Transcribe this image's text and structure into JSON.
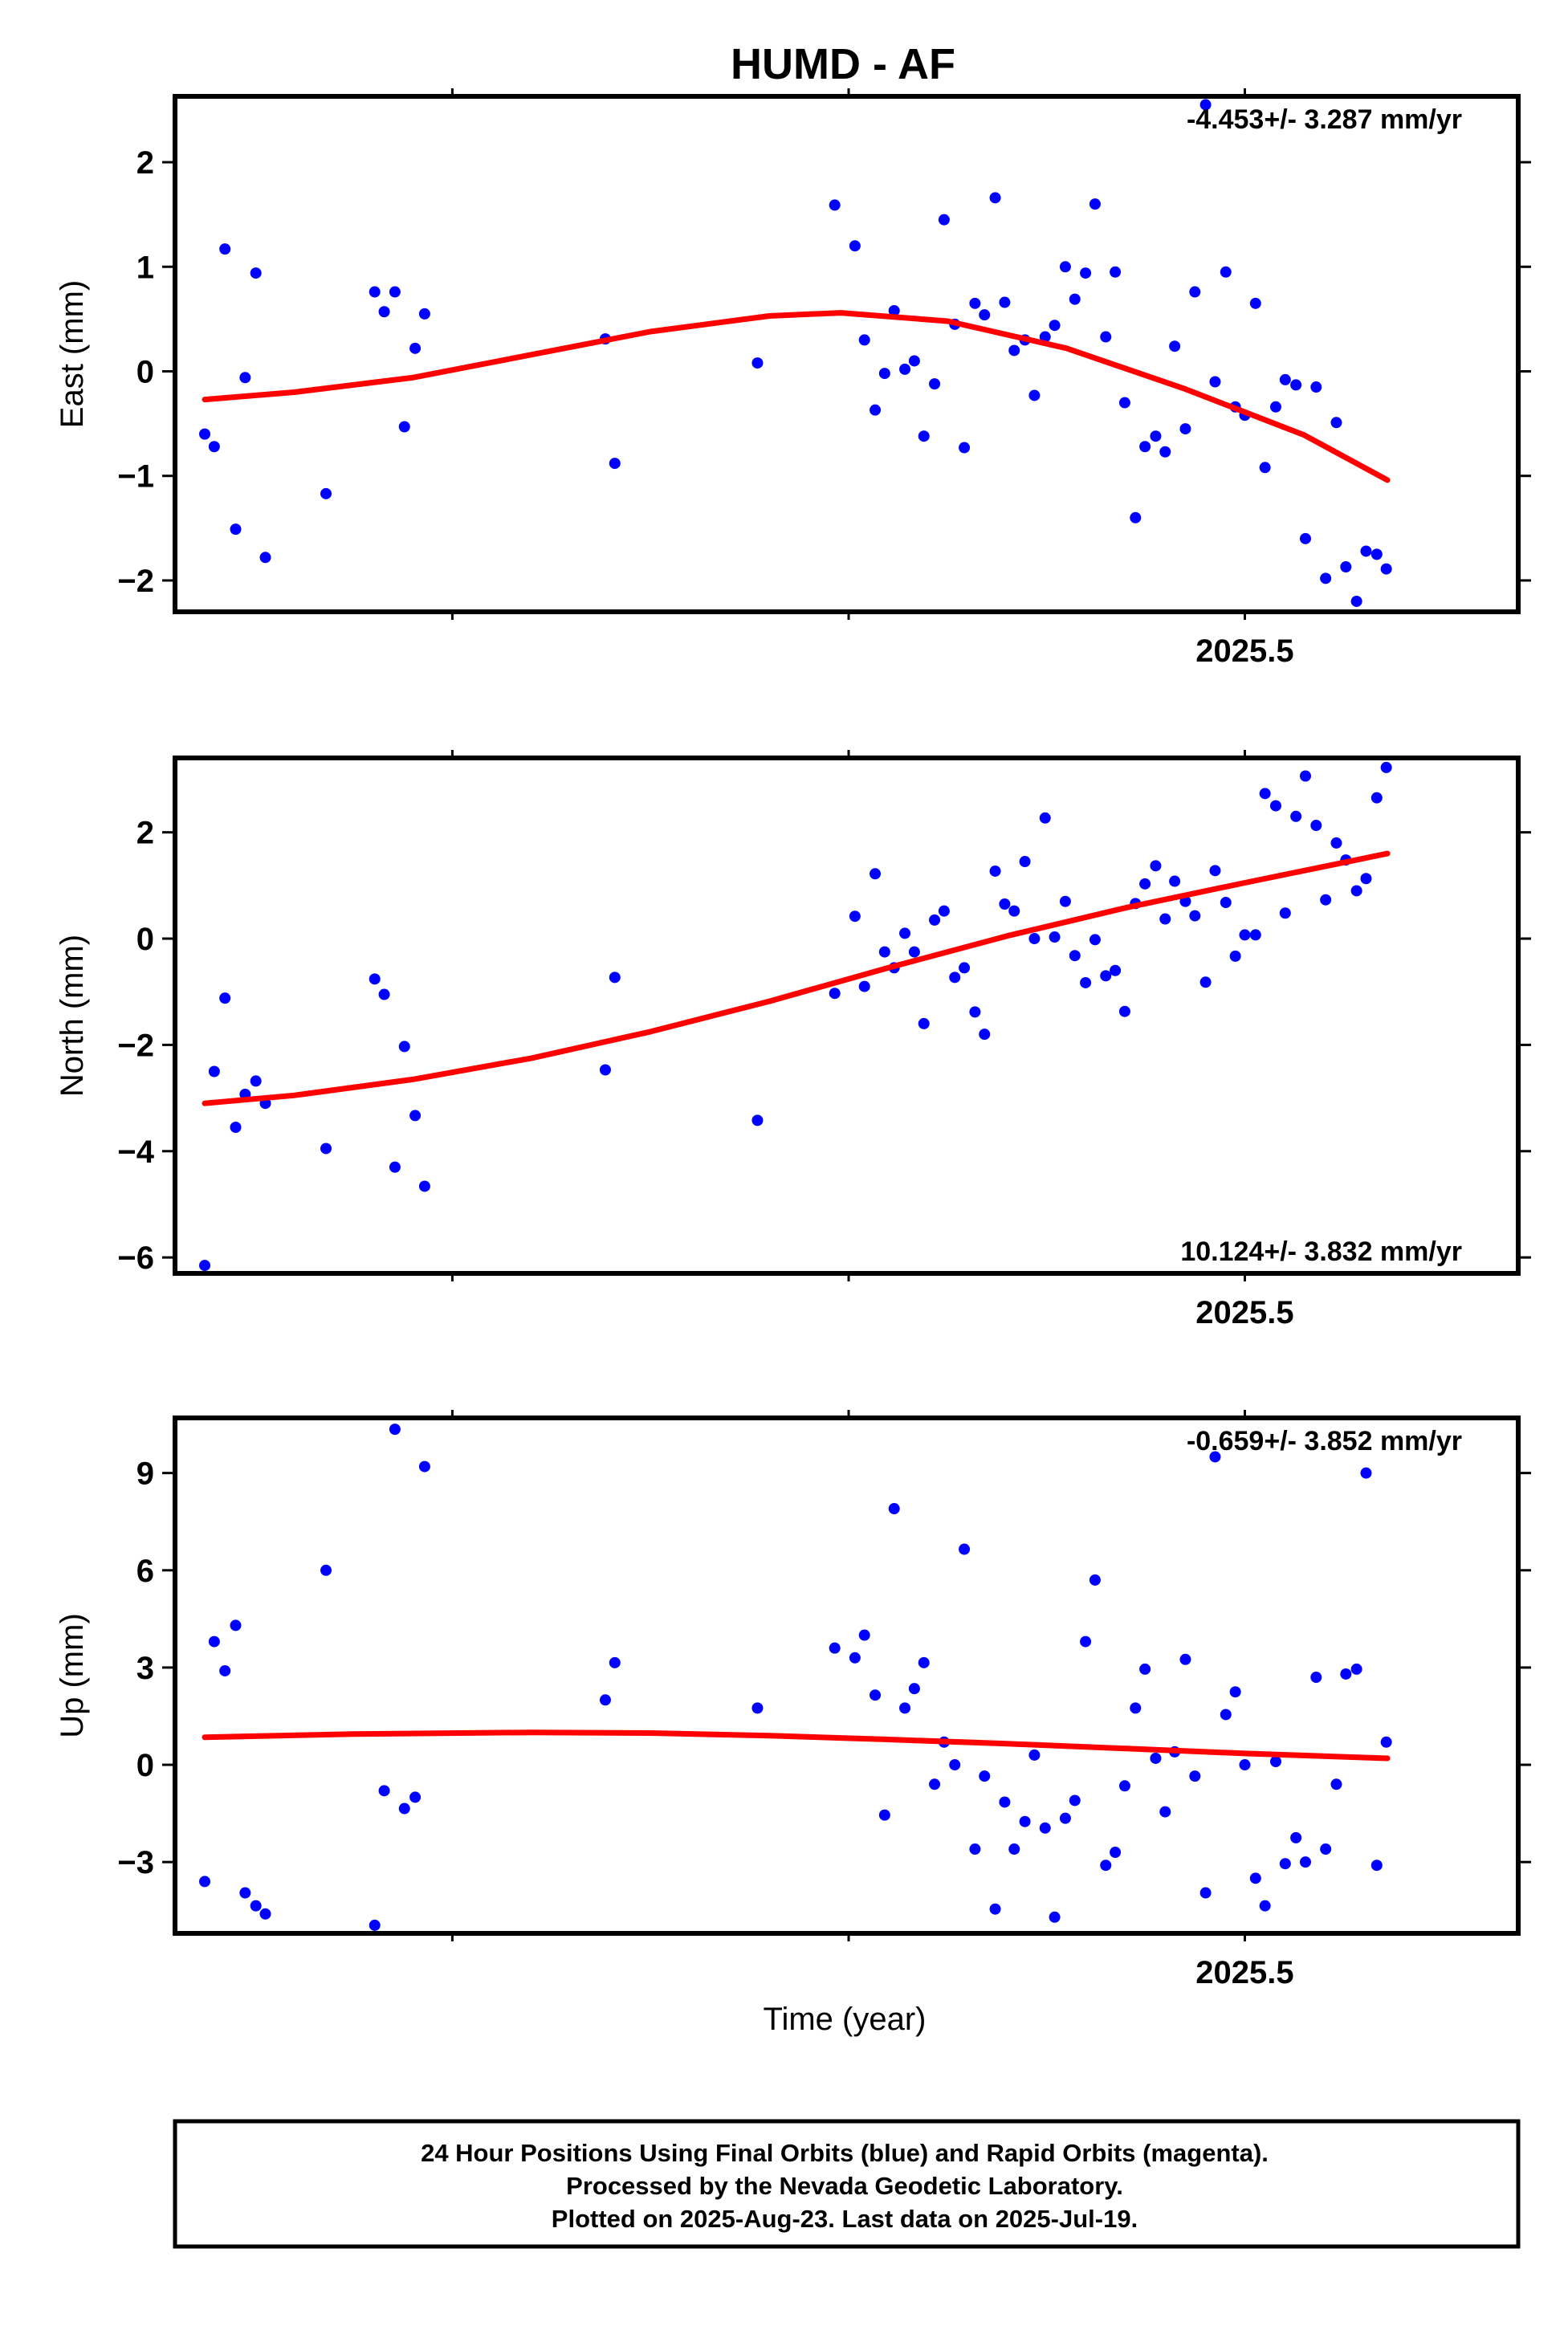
{
  "title": "HUMD - AF",
  "xlabel": "Time (year)",
  "footer": [
    "24 Hour Positions Using Final Orbits (blue) and Rapid Orbits (magenta).",
    "Processed by the Nevada Geodetic Laboratory.",
    "Plotted on 2025-Aug-23. Last data on 2025-Jul-19."
  ],
  "colors": {
    "points": "#0000ff",
    "fit": "#ff0000",
    "frame": "#000000"
  },
  "chart_data": [
    {
      "type": "scatter",
      "ylabel": "East (mm)",
      "rate_label": "-4.453+/- 3.287 mm/yr",
      "rate_position": "top-right",
      "xlim": [
        2024.6,
        2025.73
      ],
      "ylim": [
        -2.3,
        2.63
      ],
      "yticks": [
        -2,
        -1,
        0,
        1,
        2
      ],
      "xticks_labeled": [
        2025.5
      ],
      "xticks": [
        2024.8333,
        2025.1667,
        2025.5
      ],
      "points": [
        [
          2024.625,
          -0.6
        ],
        [
          2024.633,
          -0.72
        ],
        [
          2024.642,
          1.17
        ],
        [
          2024.651,
          -1.51
        ],
        [
          2024.659,
          -0.06
        ],
        [
          2024.668,
          0.94
        ],
        [
          2024.676,
          -1.78
        ],
        [
          2024.727,
          -1.17
        ],
        [
          2024.768,
          0.76
        ],
        [
          2024.776,
          0.57
        ],
        [
          2024.785,
          0.76
        ],
        [
          2024.793,
          -0.53
        ],
        [
          2024.802,
          0.22
        ],
        [
          2024.81,
          0.55
        ],
        [
          2024.962,
          0.31
        ],
        [
          2024.97,
          -0.88
        ],
        [
          2025.09,
          0.08
        ],
        [
          2025.155,
          1.59
        ],
        [
          2025.172,
          1.2
        ],
        [
          2025.18,
          0.3
        ],
        [
          2025.189,
          -0.37
        ],
        [
          2025.197,
          -0.02
        ],
        [
          2025.205,
          0.58
        ],
        [
          2025.214,
          0.02
        ],
        [
          2025.222,
          0.1
        ],
        [
          2025.23,
          -0.62
        ],
        [
          2025.239,
          -0.12
        ],
        [
          2025.247,
          1.45
        ],
        [
          2025.256,
          0.45
        ],
        [
          2025.264,
          -0.73
        ],
        [
          2025.273,
          0.65
        ],
        [
          2025.281,
          0.54
        ],
        [
          2025.29,
          1.66
        ],
        [
          2025.298,
          0.66
        ],
        [
          2025.306,
          0.2
        ],
        [
          2025.315,
          0.3
        ],
        [
          2025.323,
          -0.23
        ],
        [
          2025.332,
          0.33
        ],
        [
          2025.34,
          0.44
        ],
        [
          2025.349,
          1.0
        ],
        [
          2025.357,
          0.69
        ],
        [
          2025.366,
          0.94
        ],
        [
          2025.374,
          1.6
        ],
        [
          2025.383,
          0.33
        ],
        [
          2025.391,
          0.95
        ],
        [
          2025.399,
          -0.3
        ],
        [
          2025.408,
          -1.4
        ],
        [
          2025.416,
          -0.72
        ],
        [
          2025.425,
          -0.62
        ],
        [
          2025.433,
          -0.77
        ],
        [
          2025.441,
          0.24
        ],
        [
          2025.45,
          -0.55
        ],
        [
          2025.458,
          0.76
        ],
        [
          2025.467,
          2.55
        ],
        [
          2025.475,
          -0.1
        ],
        [
          2025.484,
          0.95
        ],
        [
          2025.492,
          -0.34
        ],
        [
          2025.5,
          -0.42
        ],
        [
          2025.509,
          0.65
        ],
        [
          2025.517,
          -0.92
        ],
        [
          2025.526,
          -0.34
        ],
        [
          2025.534,
          -0.08
        ],
        [
          2025.543,
          -0.13
        ],
        [
          2025.551,
          -1.6
        ],
        [
          2025.56,
          -0.15
        ],
        [
          2025.568,
          -1.98
        ],
        [
          2025.577,
          -0.49
        ],
        [
          2025.585,
          -1.87
        ],
        [
          2025.594,
          -2.2
        ],
        [
          2025.602,
          -1.72
        ],
        [
          2025.611,
          -1.75
        ],
        [
          2025.619,
          -1.89
        ]
      ],
      "fit": [
        [
          2024.625,
          -0.27
        ],
        [
          2024.7,
          -0.2
        ],
        [
          2024.8,
          -0.06
        ],
        [
          2024.9,
          0.16
        ],
        [
          2025.0,
          0.38
        ],
        [
          2025.1,
          0.53
        ],
        [
          2025.16,
          0.56
        ],
        [
          2025.25,
          0.48
        ],
        [
          2025.35,
          0.22
        ],
        [
          2025.45,
          -0.17
        ],
        [
          2025.55,
          -0.61
        ],
        [
          2025.62,
          -1.04
        ]
      ]
    },
    {
      "type": "scatter",
      "ylabel": "North (mm)",
      "rate_label": "10.124+/- 3.832 mm/yr",
      "rate_position": "bottom-right",
      "xlim": [
        2024.6,
        2025.73
      ],
      "ylim": [
        -6.3,
        3.4
      ],
      "yticks": [
        -6,
        -4,
        -2,
        0,
        2
      ],
      "xticks_labeled": [
        2025.5
      ],
      "xticks": [
        2024.8333,
        2025.1667,
        2025.5
      ],
      "points": [
        [
          2024.625,
          -6.15
        ],
        [
          2024.633,
          -2.5
        ],
        [
          2024.642,
          -1.12
        ],
        [
          2024.651,
          -3.55
        ],
        [
          2024.659,
          -2.93
        ],
        [
          2024.668,
          -2.68
        ],
        [
          2024.676,
          -3.1
        ],
        [
          2024.727,
          -3.95
        ],
        [
          2024.768,
          -0.76
        ],
        [
          2024.776,
          -1.05
        ],
        [
          2024.785,
          -4.3
        ],
        [
          2024.793,
          -2.03
        ],
        [
          2024.802,
          -3.33
        ],
        [
          2024.81,
          -4.66
        ],
        [
          2024.962,
          -2.47
        ],
        [
          2024.97,
          -0.73
        ],
        [
          2025.09,
          -3.42
        ],
        [
          2025.155,
          -1.03
        ],
        [
          2025.172,
          0.42
        ],
        [
          2025.18,
          -0.9
        ],
        [
          2025.189,
          1.22
        ],
        [
          2025.197,
          -0.25
        ],
        [
          2025.205,
          -0.55
        ],
        [
          2025.214,
          0.1
        ],
        [
          2025.222,
          -0.25
        ],
        [
          2025.23,
          -1.6
        ],
        [
          2025.239,
          0.35
        ],
        [
          2025.247,
          0.52
        ],
        [
          2025.256,
          -0.73
        ],
        [
          2025.264,
          -0.55
        ],
        [
          2025.273,
          -1.38
        ],
        [
          2025.281,
          -1.8
        ],
        [
          2025.29,
          1.27
        ],
        [
          2025.298,
          0.65
        ],
        [
          2025.306,
          0.52
        ],
        [
          2025.315,
          1.45
        ],
        [
          2025.323,
          0.0
        ],
        [
          2025.332,
          2.27
        ],
        [
          2025.34,
          0.03
        ],
        [
          2025.349,
          0.7
        ],
        [
          2025.357,
          -0.32
        ],
        [
          2025.366,
          -0.83
        ],
        [
          2025.374,
          -0.02
        ],
        [
          2025.383,
          -0.7
        ],
        [
          2025.391,
          -0.6
        ],
        [
          2025.399,
          -1.37
        ],
        [
          2025.408,
          0.66
        ],
        [
          2025.416,
          1.03
        ],
        [
          2025.425,
          1.37
        ],
        [
          2025.433,
          0.37
        ],
        [
          2025.441,
          1.08
        ],
        [
          2025.45,
          0.7
        ],
        [
          2025.458,
          0.43
        ],
        [
          2025.467,
          -0.82
        ],
        [
          2025.475,
          1.28
        ],
        [
          2025.484,
          0.68
        ],
        [
          2025.492,
          -0.33
        ],
        [
          2025.5,
          0.07
        ],
        [
          2025.509,
          0.07
        ],
        [
          2025.517,
          2.73
        ],
        [
          2025.526,
          2.5
        ],
        [
          2025.534,
          0.48
        ],
        [
          2025.543,
          2.3
        ],
        [
          2025.551,
          3.06
        ],
        [
          2025.56,
          2.13
        ],
        [
          2025.568,
          0.73
        ],
        [
          2025.577,
          1.8
        ],
        [
          2025.585,
          1.48
        ],
        [
          2025.594,
          0.9
        ],
        [
          2025.602,
          1.13
        ],
        [
          2025.611,
          2.65
        ],
        [
          2025.619,
          3.22
        ]
      ],
      "fit": [
        [
          2024.625,
          -3.1
        ],
        [
          2024.7,
          -2.95
        ],
        [
          2024.8,
          -2.65
        ],
        [
          2024.9,
          -2.25
        ],
        [
          2025.0,
          -1.75
        ],
        [
          2025.1,
          -1.18
        ],
        [
          2025.2,
          -0.55
        ],
        [
          2025.3,
          0.05
        ],
        [
          2025.4,
          0.58
        ],
        [
          2025.5,
          1.05
        ],
        [
          2025.62,
          1.6
        ]
      ]
    },
    {
      "type": "scatter",
      "ylabel": "Up (mm)",
      "rate_label": "-0.659+/- 3.852 mm/yr",
      "rate_position": "top-right",
      "xlim": [
        2024.6,
        2025.73
      ],
      "ylim": [
        -5.2,
        10.7
      ],
      "yticks": [
        -3,
        0,
        3,
        6,
        9
      ],
      "xticks_labeled": [
        2025.5
      ],
      "xticks": [
        2024.8333,
        2025.1667,
        2025.5
      ],
      "points": [
        [
          2024.625,
          -3.6
        ],
        [
          2024.633,
          3.8
        ],
        [
          2024.642,
          2.9
        ],
        [
          2024.651,
          4.3
        ],
        [
          2024.659,
          -3.95
        ],
        [
          2024.668,
          -4.35
        ],
        [
          2024.676,
          -4.6
        ],
        [
          2024.727,
          6.0
        ],
        [
          2024.768,
          -4.95
        ],
        [
          2024.776,
          -0.8
        ],
        [
          2024.785,
          10.35
        ],
        [
          2024.793,
          -1.35
        ],
        [
          2024.802,
          -1.0
        ],
        [
          2024.81,
          9.2
        ],
        [
          2024.962,
          2.0
        ],
        [
          2024.97,
          3.15
        ],
        [
          2025.09,
          1.75
        ],
        [
          2025.155,
          3.6
        ],
        [
          2025.172,
          3.3
        ],
        [
          2025.18,
          4.0
        ],
        [
          2025.189,
          2.15
        ],
        [
          2025.197,
          -1.55
        ],
        [
          2025.205,
          7.9
        ],
        [
          2025.214,
          1.75
        ],
        [
          2025.222,
          2.35
        ],
        [
          2025.23,
          3.15
        ],
        [
          2025.239,
          -0.6
        ],
        [
          2025.247,
          0.7
        ],
        [
          2025.256,
          0.0
        ],
        [
          2025.264,
          6.65
        ],
        [
          2025.273,
          -2.6
        ],
        [
          2025.281,
          -0.35
        ],
        [
          2025.29,
          -4.45
        ],
        [
          2025.298,
          -1.15
        ],
        [
          2025.306,
          -2.6
        ],
        [
          2025.315,
          -1.75
        ],
        [
          2025.323,
          0.3
        ],
        [
          2025.332,
          -1.95
        ],
        [
          2025.34,
          -4.7
        ],
        [
          2025.349,
          -1.65
        ],
        [
          2025.357,
          -1.1
        ],
        [
          2025.366,
          3.8
        ],
        [
          2025.374,
          5.7
        ],
        [
          2025.383,
          -3.1
        ],
        [
          2025.391,
          -2.7
        ],
        [
          2025.399,
          -0.65
        ],
        [
          2025.408,
          1.75
        ],
        [
          2025.416,
          2.95
        ],
        [
          2025.425,
          0.2
        ],
        [
          2025.433,
          -1.45
        ],
        [
          2025.441,
          0.4
        ],
        [
          2025.45,
          3.25
        ],
        [
          2025.458,
          -0.35
        ],
        [
          2025.467,
          -3.95
        ],
        [
          2025.475,
          9.5
        ],
        [
          2025.484,
          1.55
        ],
        [
          2025.492,
          2.25
        ],
        [
          2025.5,
          0.0
        ],
        [
          2025.509,
          -3.5
        ],
        [
          2025.517,
          -4.35
        ],
        [
          2025.526,
          0.1
        ],
        [
          2025.534,
          -3.05
        ],
        [
          2025.543,
          -2.25
        ],
        [
          2025.551,
          -3.0
        ],
        [
          2025.56,
          2.7
        ],
        [
          2025.568,
          -2.6
        ],
        [
          2025.577,
          -0.6
        ],
        [
          2025.585,
          2.8
        ],
        [
          2025.594,
          2.95
        ],
        [
          2025.602,
          9.0
        ],
        [
          2025.611,
          -3.1
        ],
        [
          2025.619,
          0.7
        ]
      ],
      "fit": [
        [
          2024.625,
          0.85
        ],
        [
          2024.75,
          0.95
        ],
        [
          2024.9,
          1.0
        ],
        [
          2025.0,
          0.98
        ],
        [
          2025.1,
          0.9
        ],
        [
          2025.2,
          0.78
        ],
        [
          2025.3,
          0.65
        ],
        [
          2025.4,
          0.5
        ],
        [
          2025.5,
          0.35
        ],
        [
          2025.62,
          0.2
        ]
      ]
    }
  ]
}
